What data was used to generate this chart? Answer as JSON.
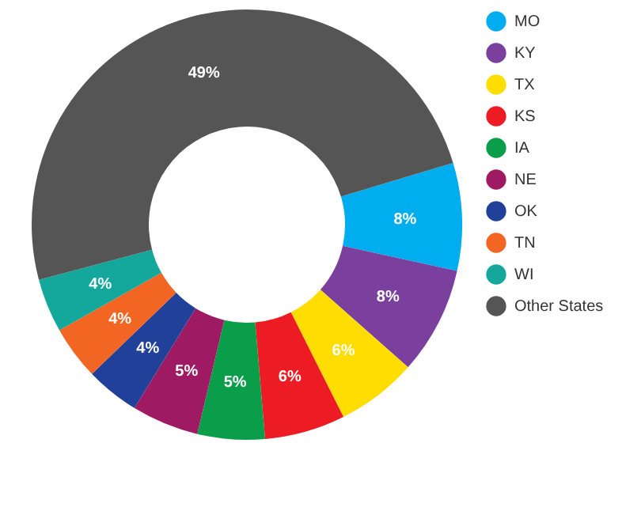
{
  "chart_data": {
    "type": "donut",
    "categories": [
      "MO",
      "KY",
      "TX",
      "KS",
      "IA",
      "NE",
      "OK",
      "TN",
      "WI",
      "Other States"
    ],
    "values": [
      8,
      8,
      6,
      6,
      5,
      5,
      4,
      4,
      4,
      49
    ],
    "colors": [
      "#00aeef",
      "#7b3f9e",
      "#ffdd00",
      "#ed1c24",
      "#0b9e4a",
      "#9e1b63",
      "#21409a",
      "#f26522",
      "#14a89c",
      "#555555"
    ],
    "value_labels": [
      "8%",
      "8%",
      "6%",
      "6%",
      "5%",
      "5%",
      "4%",
      "4%",
      "4%",
      "49%"
    ],
    "legend": "right"
  }
}
